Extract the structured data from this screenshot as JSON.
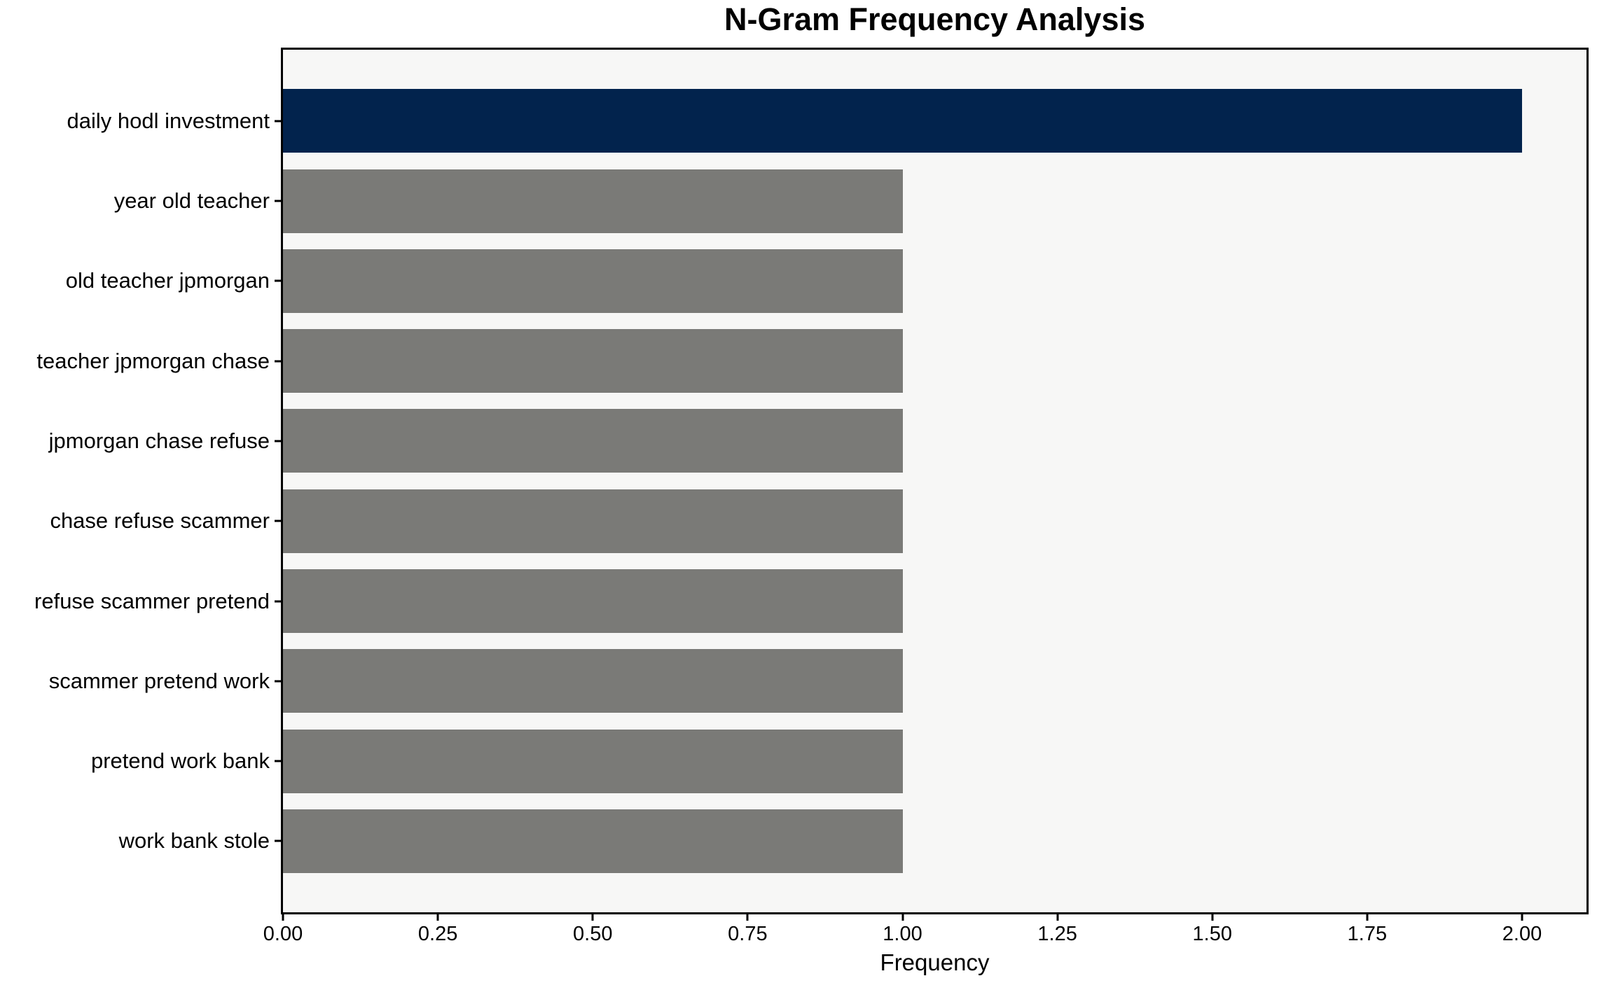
{
  "chart_data": {
    "type": "bar",
    "orientation": "horizontal",
    "title": "N-Gram Frequency Analysis",
    "xlabel": "Frequency",
    "ylabel": "",
    "categories": [
      "daily hodl investment",
      "year old teacher",
      "old teacher jpmorgan",
      "teacher jpmorgan chase",
      "jpmorgan chase refuse",
      "chase refuse scammer",
      "refuse scammer pretend",
      "scammer pretend work",
      "pretend work bank",
      "work bank stole"
    ],
    "values": [
      2,
      1,
      1,
      1,
      1,
      1,
      1,
      1,
      1,
      1
    ],
    "bar_colors": [
      "#02234d",
      "#7a7a77",
      "#7a7a77",
      "#7a7a77",
      "#7a7a77",
      "#7a7a77",
      "#7a7a77",
      "#7a7a77",
      "#7a7a77",
      "#7a7a77"
    ],
    "xlim": [
      0,
      2.104
    ],
    "xticks": [
      0,
      0.25,
      0.5,
      0.75,
      1,
      1.25,
      1.5,
      1.75,
      2
    ],
    "xtick_labels": [
      "0.00",
      "0.25",
      "0.50",
      "0.75",
      "1.00",
      "1.25",
      "1.50",
      "1.75",
      "2.00"
    ],
    "grid": false,
    "legend": null,
    "colors": {
      "highlight_bar": "#02234d",
      "default_bar": "#7a7a77",
      "plot_background": "#f7f7f6",
      "figure_background": "#ffffff",
      "spine": "#000000",
      "text": "#000000"
    }
  }
}
